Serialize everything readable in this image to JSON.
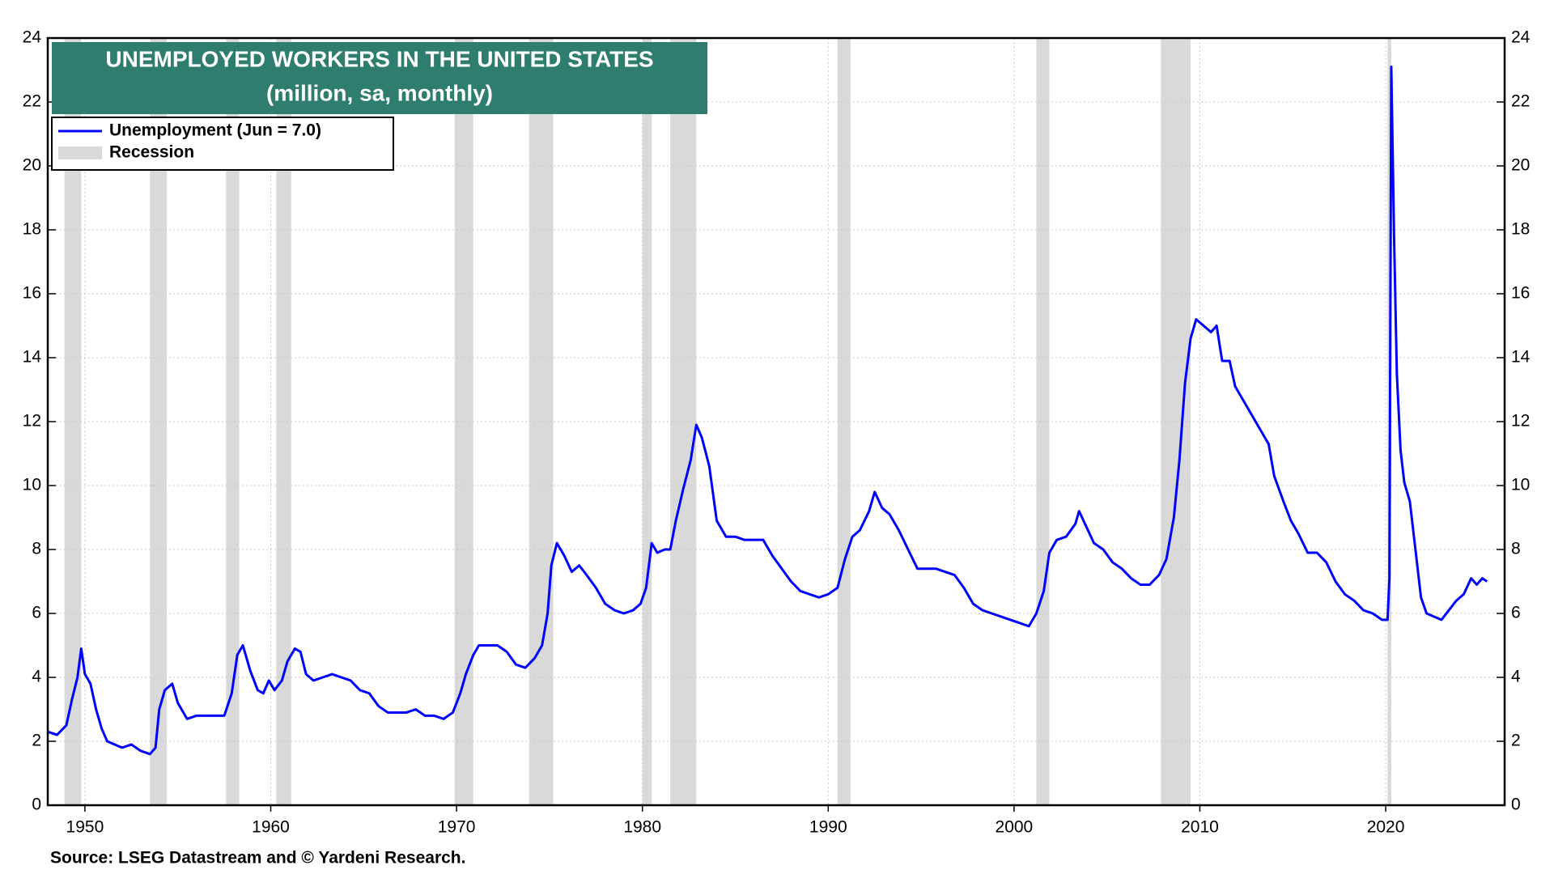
{
  "chart_data": {
    "type": "line",
    "title": "UNEMPLOYED WORKERS IN THE UNITED STATES",
    "subtitle": "(million, sa, monthly)",
    "source": "Source: LSEG Datastream and © Yardeni Research.",
    "xlim": [
      1948,
      2026.4
    ],
    "xticks": [
      1950,
      1960,
      1970,
      1980,
      1990,
      2000,
      2010,
      2020
    ],
    "ylim": [
      0,
      24
    ],
    "yticks": [
      0,
      2,
      4,
      6,
      8,
      10,
      12,
      14,
      16,
      18,
      20,
      22,
      24
    ],
    "y2lim": [
      0,
      24
    ],
    "y2ticks": [
      0,
      2,
      4,
      6,
      8,
      10,
      12,
      14,
      16,
      18,
      20,
      22,
      24
    ],
    "grid": true,
    "legend": "upper left",
    "recessions": {
      "name": "Recession",
      "color": "#d9d9d9",
      "spans": [
        [
          1948.9,
          1949.8
        ],
        [
          1953.5,
          1954.4
        ],
        [
          1957.6,
          1958.3
        ],
        [
          1960.3,
          1961.1
        ],
        [
          1969.9,
          1970.9
        ],
        [
          1973.9,
          1975.2
        ],
        [
          1980.0,
          1980.5
        ],
        [
          1981.5,
          1982.9
        ],
        [
          1990.5,
          1991.2
        ],
        [
          2001.2,
          2001.9
        ],
        [
          2007.9,
          2009.5
        ],
        [
          2020.1,
          2020.3
        ]
      ]
    },
    "x": [
      1948.0,
      1948.5,
      1949.0,
      1949.3,
      1949.6,
      1949.8,
      1950.0,
      1950.3,
      1950.6,
      1950.9,
      1951.2,
      1951.6,
      1952.0,
      1952.5,
      1953.0,
      1953.5,
      1953.8,
      1954.0,
      1954.3,
      1954.7,
      1955.0,
      1955.5,
      1956.0,
      1956.5,
      1957.0,
      1957.5,
      1957.9,
      1958.2,
      1958.5,
      1958.9,
      1959.3,
      1959.6,
      1959.9,
      1960.2,
      1960.6,
      1960.9,
      1961.3,
      1961.6,
      1961.9,
      1962.3,
      1962.8,
      1963.3,
      1963.8,
      1964.3,
      1964.8,
      1965.3,
      1965.8,
      1966.3,
      1966.8,
      1967.3,
      1967.8,
      1968.3,
      1968.8,
      1969.3,
      1969.8,
      1970.2,
      1970.5,
      1970.9,
      1971.2,
      1971.7,
      1972.2,
      1972.7,
      1973.2,
      1973.7,
      1974.2,
      1974.6,
      1974.9,
      1975.1,
      1975.4,
      1975.8,
      1976.2,
      1976.6,
      1977.0,
      1977.5,
      1978.0,
      1978.5,
      1979.0,
      1979.5,
      1979.9,
      1980.2,
      1980.5,
      1980.8,
      1981.2,
      1981.5,
      1981.8,
      1982.2,
      1982.6,
      1982.9,
      1983.2,
      1983.6,
      1984.0,
      1984.5,
      1985.0,
      1985.5,
      1986.0,
      1986.5,
      1987.0,
      1987.5,
      1988.0,
      1988.5,
      1989.0,
      1989.5,
      1990.0,
      1990.5,
      1990.9,
      1991.3,
      1991.7,
      1992.2,
      1992.5,
      1992.9,
      1993.3,
      1993.8,
      1994.3,
      1994.8,
      1995.3,
      1995.8,
      1996.3,
      1996.8,
      1997.3,
      1997.8,
      1998.3,
      1998.8,
      1999.3,
      1999.8,
      2000.3,
      2000.8,
      2001.2,
      2001.6,
      2001.9,
      2002.3,
      2002.8,
      2003.3,
      2003.5,
      2003.9,
      2004.3,
      2004.8,
      2005.3,
      2005.8,
      2006.3,
      2006.8,
      2007.3,
      2007.8,
      2008.2,
      2008.6,
      2008.9,
      2009.2,
      2009.5,
      2009.8,
      2010.2,
      2010.6,
      2010.9,
      2011.2,
      2011.6,
      2011.9,
      2012.3,
      2012.8,
      2013.3,
      2013.7,
      2014.0,
      2014.5,
      2014.9,
      2015.3,
      2015.8,
      2016.3,
      2016.8,
      2017.3,
      2017.8,
      2018.3,
      2018.8,
      2019.3,
      2019.8,
      2020.1,
      2020.2,
      2020.3,
      2020.45,
      2020.6,
      2020.8,
      2021.0,
      2021.3,
      2021.6,
      2021.9,
      2022.2,
      2022.6,
      2023.0,
      2023.4,
      2023.8,
      2024.2,
      2024.6,
      2024.9,
      2025.2,
      2025.45
    ],
    "series": [
      {
        "name": "Unemployment  (Jun = 7.0)",
        "color": "#0000ff",
        "values": [
          2.3,
          2.2,
          2.5,
          3.3,
          4.0,
          4.9,
          4.1,
          3.8,
          3.0,
          2.4,
          2.0,
          1.9,
          1.8,
          1.9,
          1.7,
          1.6,
          1.8,
          3.0,
          3.6,
          3.8,
          3.2,
          2.7,
          2.8,
          2.8,
          2.8,
          2.8,
          3.5,
          4.7,
          5.0,
          4.2,
          3.6,
          3.5,
          3.9,
          3.6,
          3.9,
          4.5,
          4.9,
          4.8,
          4.1,
          3.9,
          4.0,
          4.1,
          4.0,
          3.9,
          3.6,
          3.5,
          3.1,
          2.9,
          2.9,
          2.9,
          3.0,
          2.8,
          2.8,
          2.7,
          2.9,
          3.5,
          4.1,
          4.7,
          5.0,
          5.0,
          5.0,
          4.8,
          4.4,
          4.3,
          4.6,
          5.0,
          6.0,
          7.5,
          8.2,
          7.8,
          7.3,
          7.5,
          7.2,
          6.8,
          6.3,
          6.1,
          6.0,
          6.1,
          6.3,
          6.8,
          8.2,
          7.9,
          8.0,
          8.0,
          8.9,
          9.9,
          10.8,
          11.9,
          11.5,
          10.6,
          8.9,
          8.4,
          8.4,
          8.3,
          8.3,
          8.3,
          7.8,
          7.4,
          7.0,
          6.7,
          6.6,
          6.5,
          6.6,
          6.8,
          7.7,
          8.4,
          8.6,
          9.2,
          9.8,
          9.3,
          9.1,
          8.6,
          8.0,
          7.4,
          7.4,
          7.4,
          7.3,
          7.2,
          6.8,
          6.3,
          6.1,
          6.0,
          5.9,
          5.8,
          5.7,
          5.6,
          6.0,
          6.7,
          7.9,
          8.3,
          8.4,
          8.8,
          9.2,
          8.7,
          8.2,
          8.0,
          7.6,
          7.4,
          7.1,
          6.9,
          6.9,
          7.2,
          7.7,
          9.0,
          10.8,
          13.2,
          14.6,
          15.2,
          15.0,
          14.8,
          15.0,
          13.9,
          13.9,
          13.1,
          12.7,
          12.2,
          11.7,
          11.3,
          10.3,
          9.5,
          8.9,
          8.5,
          7.9,
          7.9,
          7.6,
          7.0,
          6.6,
          6.4,
          6.1,
          6.0,
          5.8,
          5.8,
          7.1,
          23.1,
          17.8,
          13.5,
          11.1,
          10.1,
          9.5,
          8.0,
          6.5,
          6.0,
          5.9,
          5.8,
          6.1,
          6.4,
          6.6,
          7.1,
          6.9,
          7.1,
          7.0
        ]
      }
    ]
  }
}
